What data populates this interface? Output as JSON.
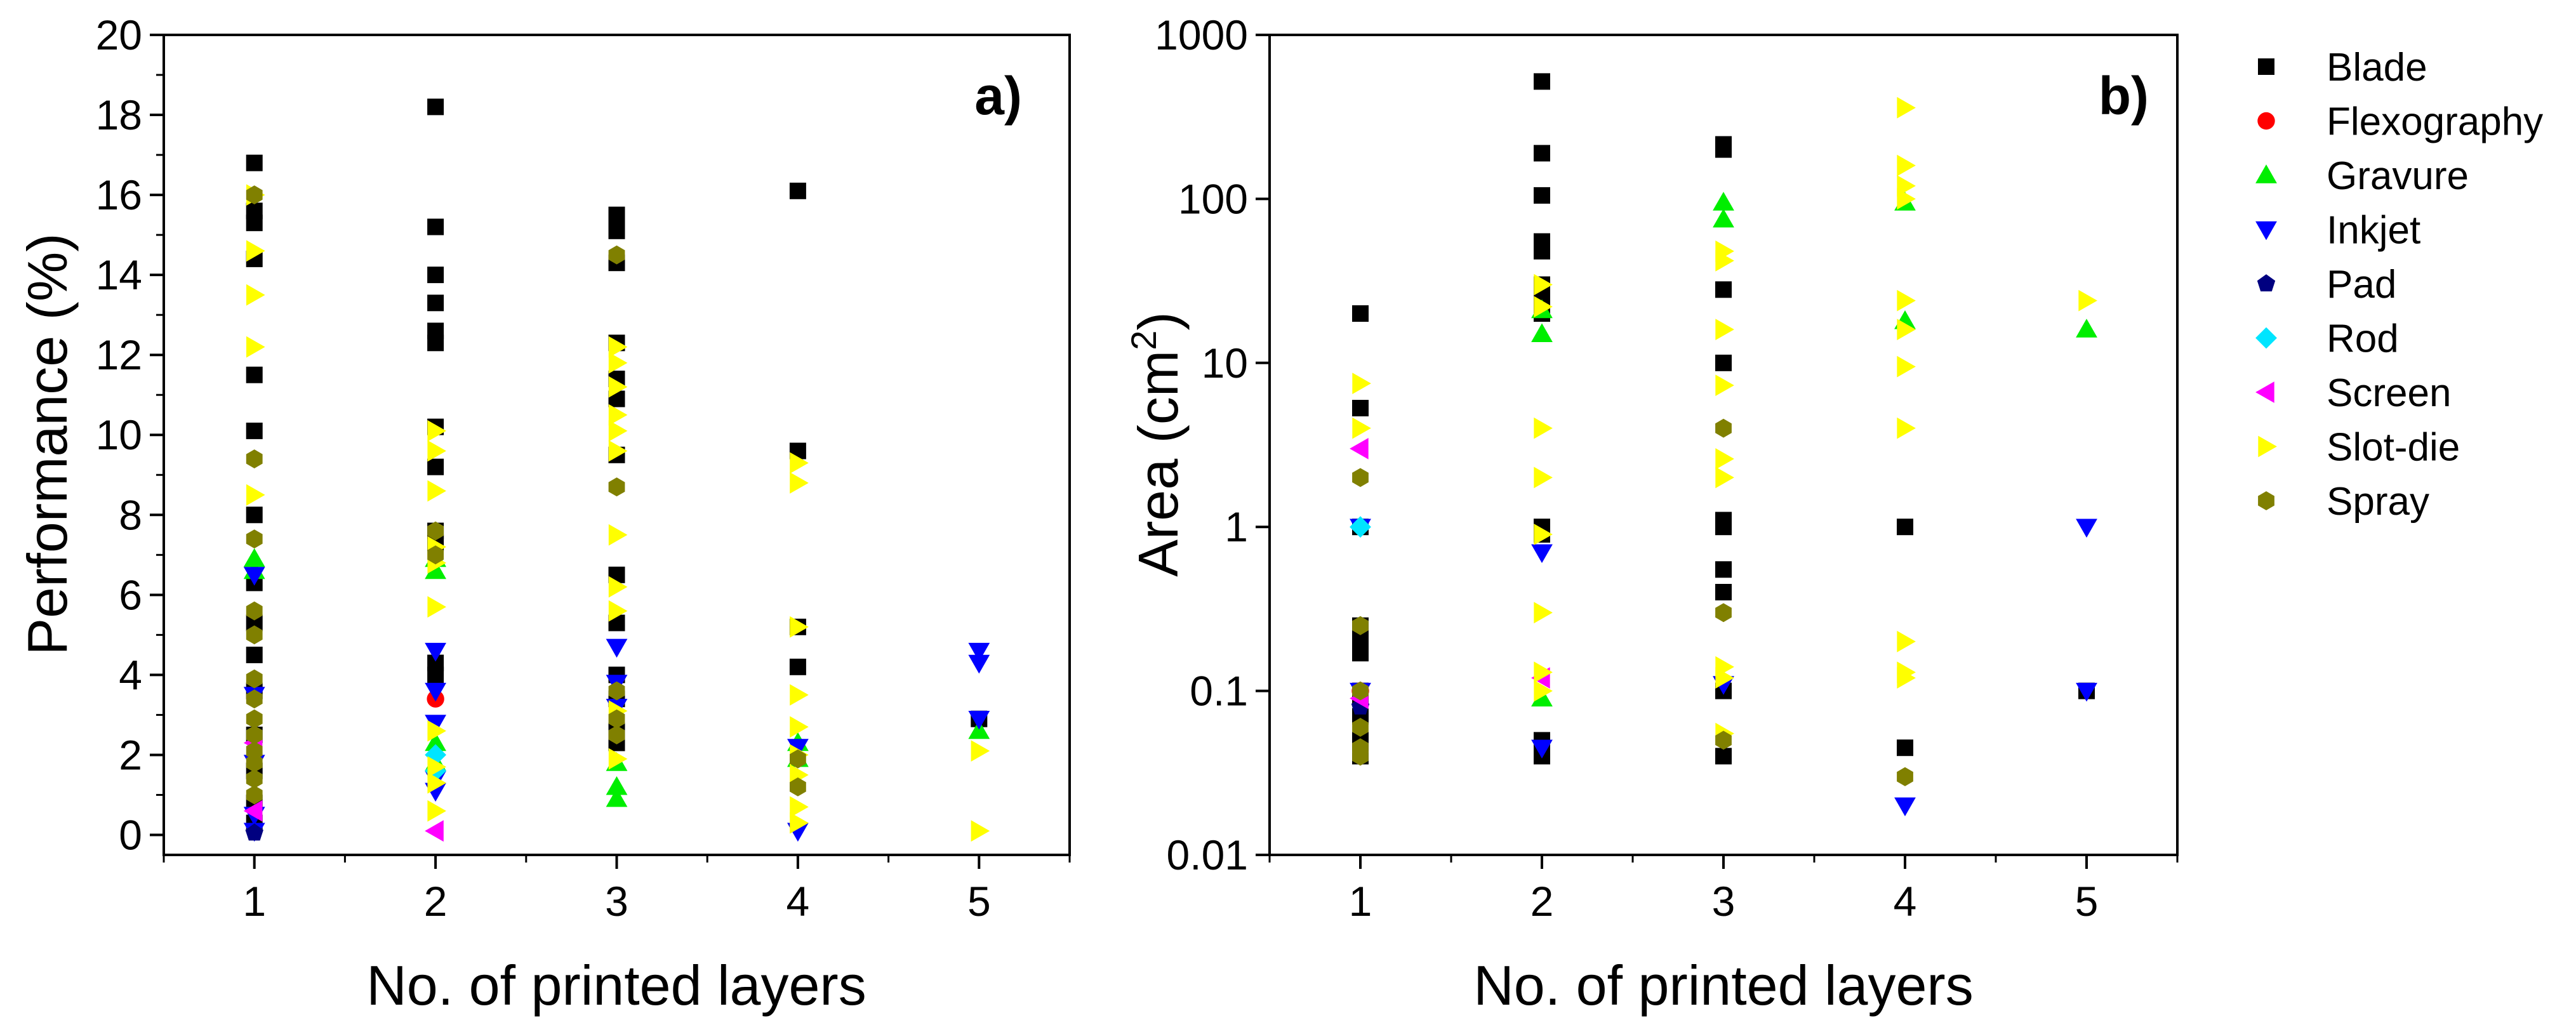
{
  "chart_data": [
    {
      "type": "scatter",
      "panel_label": "a)",
      "xlabel": "No. of printed layers",
      "ylabel": "Performance (%)",
      "xlim": [
        0.5,
        5.5
      ],
      "ylim": [
        -0.5,
        20
      ],
      "yscale": "linear",
      "xticks": [
        "1",
        "2",
        "3",
        "4",
        "5"
      ],
      "yticks": [
        "0",
        "2",
        "4",
        "6",
        "8",
        "10",
        "12",
        "14",
        "16",
        "18",
        "20"
      ],
      "series": [
        {
          "name": "Blade",
          "points": [
            [
              1,
              16.8
            ],
            [
              1,
              15.6
            ],
            [
              1,
              15.3
            ],
            [
              1,
              14.4
            ],
            [
              1,
              11.5
            ],
            [
              1,
              10.1
            ],
            [
              1,
              8.0
            ],
            [
              1,
              6.3
            ],
            [
              1,
              5.3
            ],
            [
              1,
              4.5
            ],
            [
              1,
              3.6
            ],
            [
              1,
              2.5
            ],
            [
              1,
              1.6
            ],
            [
              1,
              0.8
            ],
            [
              1,
              0.3
            ],
            [
              2,
              18.2
            ],
            [
              2,
              15.2
            ],
            [
              2,
              14.0
            ],
            [
              2,
              13.3
            ],
            [
              2,
              12.6
            ],
            [
              2,
              12.3
            ],
            [
              2,
              10.2
            ],
            [
              2,
              9.2
            ],
            [
              2,
              7.6
            ],
            [
              2,
              7.3
            ],
            [
              2,
              4.3
            ],
            [
              2,
              4.0
            ],
            [
              3,
              15.5
            ],
            [
              3,
              15.1
            ],
            [
              3,
              14.3
            ],
            [
              3,
              12.3
            ],
            [
              3,
              11.4
            ],
            [
              3,
              10.9
            ],
            [
              3,
              9.5
            ],
            [
              3,
              6.5
            ],
            [
              3,
              5.3
            ],
            [
              3,
              4.0
            ],
            [
              3,
              3.4
            ],
            [
              3,
              2.6
            ],
            [
              3,
              2.3
            ],
            [
              4,
              16.1
            ],
            [
              4,
              9.6
            ],
            [
              4,
              5.2
            ],
            [
              4,
              4.2
            ],
            [
              5,
              2.9
            ]
          ]
        },
        {
          "name": "Flexography",
          "points": [
            [
              2,
              3.4
            ]
          ]
        },
        {
          "name": "Gravure",
          "points": [
            [
              1,
              6.9
            ],
            [
              1,
              6.6
            ],
            [
              2,
              6.9
            ],
            [
              2,
              6.6
            ],
            [
              2,
              2.3
            ],
            [
              2,
              1.8
            ],
            [
              3,
              1.8
            ],
            [
              3,
              1.2
            ],
            [
              3,
              0.9
            ],
            [
              4,
              2.3
            ],
            [
              4,
              1.9
            ],
            [
              5,
              2.6
            ]
          ]
        },
        {
          "name": "Inkjet",
          "points": [
            [
              1,
              6.5
            ],
            [
              1,
              3.5
            ],
            [
              1,
              1.8
            ],
            [
              1,
              0.5
            ],
            [
              1,
              0.1
            ],
            [
              2,
              4.6
            ],
            [
              2,
              3.6
            ],
            [
              2,
              2.8
            ],
            [
              2,
              1.4
            ],
            [
              2,
              1.1
            ],
            [
              3,
              4.7
            ],
            [
              3,
              3.8
            ],
            [
              3,
              3.2
            ],
            [
              4,
              2.2
            ],
            [
              4,
              0.1
            ],
            [
              5,
              4.6
            ],
            [
              5,
              4.3
            ],
            [
              5,
              2.9
            ]
          ]
        },
        {
          "name": "Pad",
          "points": [
            [
              1,
              0.05
            ]
          ]
        },
        {
          "name": "Rod",
          "points": [
            [
              2,
              2.0
            ],
            [
              2,
              1.6
            ]
          ]
        },
        {
          "name": "Screen",
          "points": [
            [
              1,
              2.3
            ],
            [
              1,
              0.6
            ],
            [
              2,
              0.1
            ]
          ]
        },
        {
          "name": "Slot-die",
          "points": [
            [
              1,
              16.0
            ],
            [
              1,
              14.6
            ],
            [
              1,
              13.5
            ],
            [
              1,
              12.2
            ],
            [
              1,
              8.5
            ],
            [
              2,
              10.1
            ],
            [
              2,
              9.6
            ],
            [
              2,
              8.6
            ],
            [
              2,
              7.2
            ],
            [
              2,
              6.8
            ],
            [
              2,
              5.7
            ],
            [
              2,
              2.6
            ],
            [
              2,
              1.7
            ],
            [
              2,
              1.3
            ],
            [
              2,
              0.6
            ],
            [
              3,
              12.2
            ],
            [
              3,
              11.8
            ],
            [
              3,
              11.2
            ],
            [
              3,
              10.5
            ],
            [
              3,
              10.1
            ],
            [
              3,
              9.6
            ],
            [
              3,
              7.5
            ],
            [
              3,
              6.2
            ],
            [
              3,
              5.6
            ],
            [
              3,
              3.1
            ],
            [
              3,
              1.9
            ],
            [
              4,
              9.3
            ],
            [
              4,
              8.8
            ],
            [
              4,
              5.2
            ],
            [
              4,
              3.5
            ],
            [
              4,
              2.7
            ],
            [
              4,
              2.0
            ],
            [
              4,
              1.5
            ],
            [
              4,
              0.7
            ],
            [
              4,
              0.3
            ],
            [
              5,
              2.1
            ],
            [
              5,
              0.1
            ]
          ]
        },
        {
          "name": "Spray",
          "points": [
            [
              1,
              16.0
            ],
            [
              1,
              9.4
            ],
            [
              1,
              7.4
            ],
            [
              1,
              5.6
            ],
            [
              1,
              5.0
            ],
            [
              1,
              3.9
            ],
            [
              1,
              3.4
            ],
            [
              1,
              2.9
            ],
            [
              1,
              2.5
            ],
            [
              1,
              2.1
            ],
            [
              1,
              1.8
            ],
            [
              1,
              1.4
            ],
            [
              1,
              1.0
            ],
            [
              2,
              7.6
            ],
            [
              2,
              7.0
            ],
            [
              3,
              14.5
            ],
            [
              3,
              8.7
            ],
            [
              3,
              3.6
            ],
            [
              3,
              2.9
            ],
            [
              3,
              2.5
            ],
            [
              4,
              1.9
            ],
            [
              4,
              1.2
            ]
          ]
        }
      ]
    },
    {
      "type": "scatter",
      "panel_label": "b)",
      "xlabel": "No. of printed layers",
      "ylabel_main": "Area (cm",
      "ylabel_sup": "2",
      "ylabel_end": ")",
      "xlim": [
        0.5,
        5.5
      ],
      "ylim": [
        0.01,
        1000
      ],
      "yscale": "log",
      "xticks": [
        "1",
        "2",
        "3",
        "4",
        "5"
      ],
      "yticks": [
        "0.01",
        "0.1",
        "1",
        "10",
        "100",
        "1000"
      ],
      "series": [
        {
          "name": "Blade",
          "points": [
            [
              1,
              20
            ],
            [
              1,
              5.3
            ],
            [
              1,
              1
            ],
            [
              1,
              0.25
            ],
            [
              1,
              0.2
            ],
            [
              1,
              0.17
            ],
            [
              1,
              0.1
            ],
            [
              1,
              0.09
            ],
            [
              1,
              0.07
            ],
            [
              1,
              0.05
            ],
            [
              1,
              0.04
            ],
            [
              2,
              520
            ],
            [
              2,
              190
            ],
            [
              2,
              105
            ],
            [
              2,
              55
            ],
            [
              2,
              48
            ],
            [
              2,
              30
            ],
            [
              2,
              25
            ],
            [
              2,
              20
            ],
            [
              2,
              1
            ],
            [
              2,
              0.9
            ],
            [
              2,
              0.05
            ],
            [
              2,
              0.04
            ],
            [
              3,
              215
            ],
            [
              3,
              200
            ],
            [
              3,
              28
            ],
            [
              3,
              10
            ],
            [
              3,
              1.1
            ],
            [
              3,
              1
            ],
            [
              3,
              0.55
            ],
            [
              3,
              0.4
            ],
            [
              3,
              0.1
            ],
            [
              3,
              0.04
            ],
            [
              4,
              1
            ],
            [
              4,
              0.045
            ],
            [
              5,
              0.1
            ]
          ]
        },
        {
          "name": "Flexography",
          "points": [
            [
              1,
              0.1
            ]
          ]
        },
        {
          "name": "Gravure",
          "points": [
            [
              2,
              21
            ],
            [
              2,
              15
            ],
            [
              2,
              0.09
            ],
            [
              3,
              95
            ],
            [
              3,
              75
            ],
            [
              4,
              95
            ],
            [
              4,
              18
            ],
            [
              5,
              16
            ]
          ]
        },
        {
          "name": "Inkjet",
          "points": [
            [
              1,
              1
            ],
            [
              1,
              0.1
            ],
            [
              2,
              0.7
            ],
            [
              2,
              0.045
            ],
            [
              3,
              0.11
            ],
            [
              4,
              0.02
            ],
            [
              5,
              1
            ],
            [
              5,
              0.1
            ]
          ]
        },
        {
          "name": "Pad",
          "points": [
            [
              1,
              0.08
            ]
          ]
        },
        {
          "name": "Rod",
          "points": [
            [
              1,
              1
            ]
          ]
        },
        {
          "name": "Screen",
          "points": [
            [
              1,
              3
            ],
            [
              1,
              0.09
            ],
            [
              2,
              0.12
            ]
          ]
        },
        {
          "name": "Slot-die",
          "points": [
            [
              1,
              7.5
            ],
            [
              1,
              4
            ],
            [
              2,
              30
            ],
            [
              2,
              22
            ],
            [
              2,
              4
            ],
            [
              2,
              2
            ],
            [
              2,
              0.9
            ],
            [
              2,
              0.3
            ],
            [
              2,
              0.13
            ],
            [
              2,
              0.1
            ],
            [
              3,
              48
            ],
            [
              3,
              42
            ],
            [
              3,
              16
            ],
            [
              3,
              7.3
            ],
            [
              3,
              2.6
            ],
            [
              3,
              2
            ],
            [
              3,
              0.14
            ],
            [
              3,
              0.12
            ],
            [
              3,
              0.055
            ],
            [
              4,
              360
            ],
            [
              4,
              160
            ],
            [
              4,
              120
            ],
            [
              4,
              100
            ],
            [
              4,
              24
            ],
            [
              4,
              16
            ],
            [
              4,
              9.5
            ],
            [
              4,
              4
            ],
            [
              4,
              0.2
            ],
            [
              4,
              0.13
            ],
            [
              4,
              0.12
            ],
            [
              5,
              24
            ]
          ]
        },
        {
          "name": "Spray",
          "points": [
            [
              1,
              2
            ],
            [
              1,
              0.25
            ],
            [
              1,
              0.1
            ],
            [
              1,
              0.06
            ],
            [
              1,
              0.045
            ],
            [
              1,
              0.04
            ],
            [
              3,
              4
            ],
            [
              3,
              0.3
            ],
            [
              3,
              0.05
            ],
            [
              4,
              0.03
            ]
          ]
        }
      ]
    }
  ],
  "legend": [
    {
      "name": "Blade",
      "color": "#000000",
      "marker": "square"
    },
    {
      "name": "Flexography",
      "color": "#ff0000",
      "marker": "circle"
    },
    {
      "name": "Gravure",
      "color": "#00ee00",
      "marker": "triangle-up"
    },
    {
      "name": "Inkjet",
      "color": "#0000ff",
      "marker": "triangle-down"
    },
    {
      "name": "Pad",
      "color": "#000080",
      "marker": "pentagon"
    },
    {
      "name": "Rod",
      "color": "#00e5ff",
      "marker": "diamond"
    },
    {
      "name": "Screen",
      "color": "#ff00ff",
      "marker": "triangle-left"
    },
    {
      "name": "Slot-die",
      "color": "#ffff00",
      "marker": "triangle-right"
    },
    {
      "name": "Spray",
      "color": "#808000",
      "marker": "hexagon"
    }
  ]
}
